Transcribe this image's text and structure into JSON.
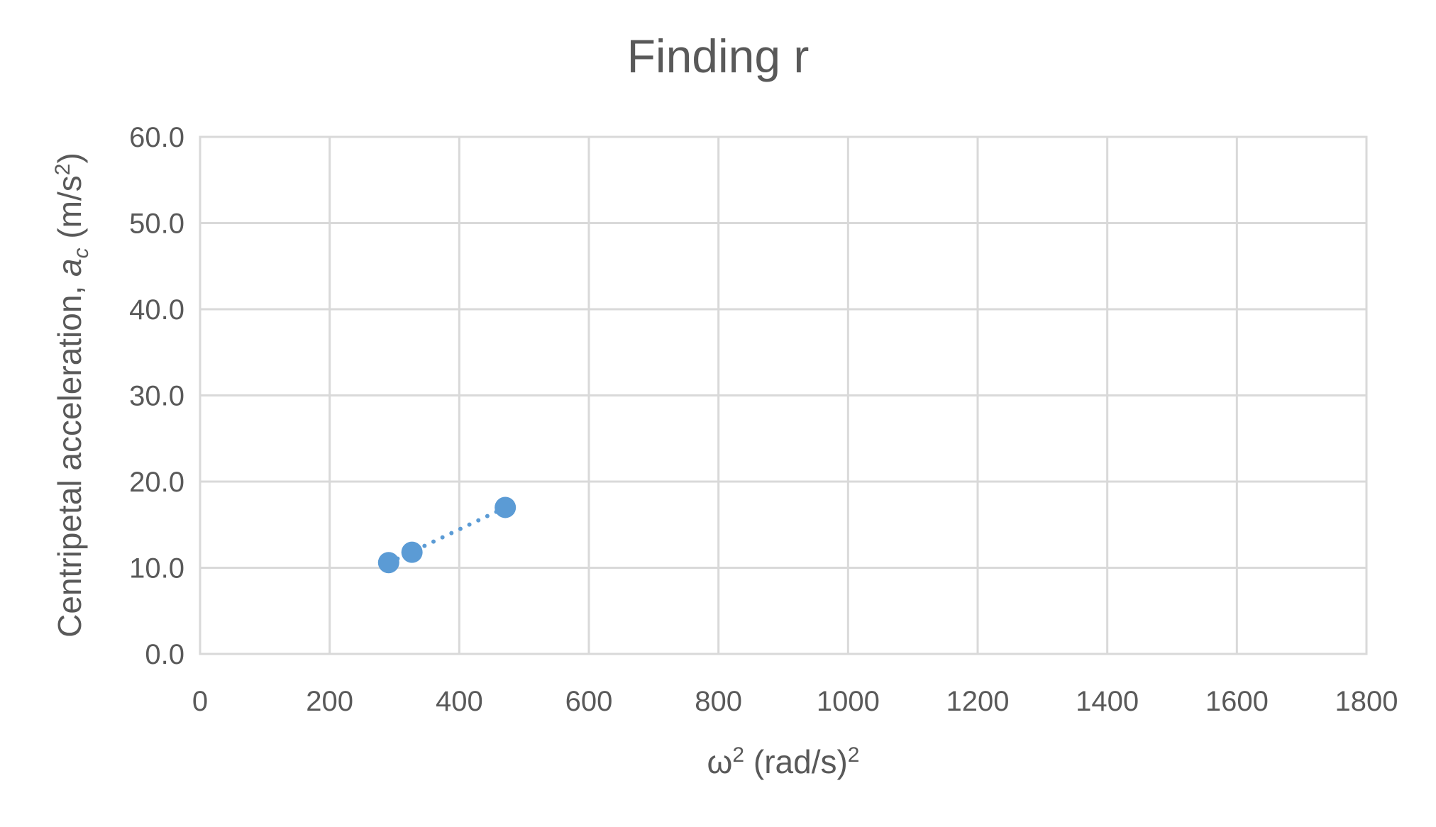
{
  "chart_data": {
    "type": "scatter",
    "title": "Finding r",
    "xlabel": "ω² (rad/s)²",
    "ylabel": "Centripetal acceleration, ac (m/s²)",
    "ylabel_parts": {
      "text": "Centripetal acceleration, ",
      "var": "a",
      "sub": "c",
      "unit_open": " (m/s",
      "sup": "2",
      "unit_close": ")"
    },
    "xlabel_parts": {
      "text": "ω",
      "sup1": "2",
      "mid": " (rad/s)",
      "sup2": "2"
    },
    "xlim": [
      0,
      1800
    ],
    "ylim": [
      0,
      60
    ],
    "x_ticks": [
      0,
      200,
      400,
      600,
      800,
      1000,
      1200,
      1400,
      1600,
      1800
    ],
    "y_ticks": [
      0,
      10,
      20,
      30,
      40,
      50,
      60
    ],
    "x_tick_labels": [
      "0",
      "200",
      "400",
      "600",
      "800",
      "1000",
      "1200",
      "1400",
      "1600",
      "1800"
    ],
    "y_tick_labels": [
      "0.0",
      "10.0",
      "20.0",
      "30.0",
      "40.0",
      "50.0",
      "60.0"
    ],
    "grid": true,
    "legend": "none",
    "trendline": "linear, dotted",
    "color": "#5b9bd5",
    "series": [
      {
        "x": [
          291,
          327,
          471
        ],
        "y": [
          10.6,
          11.8,
          17.0
        ]
      }
    ]
  }
}
